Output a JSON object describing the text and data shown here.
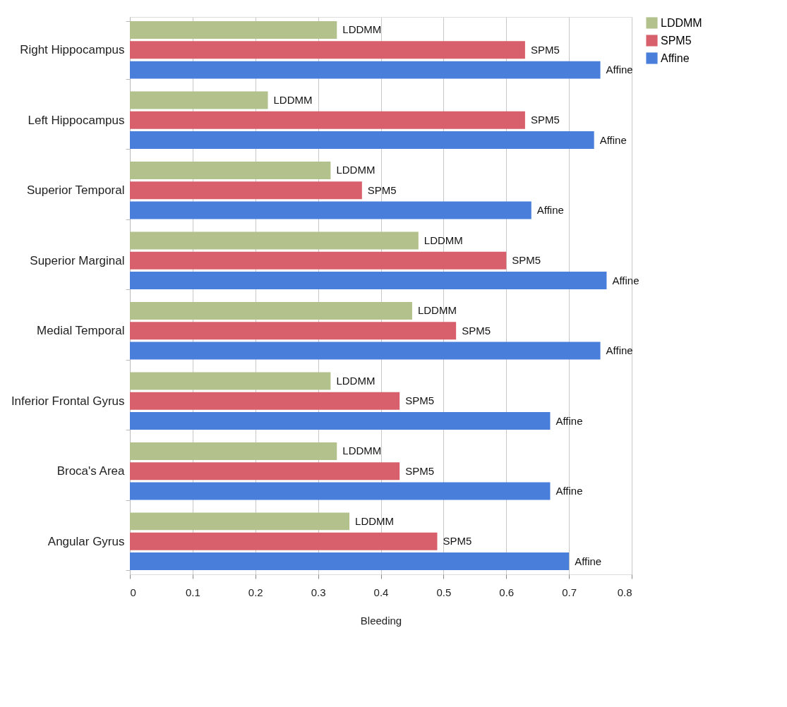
{
  "chart_data": {
    "type": "bar",
    "orientation": "horizontal",
    "xlabel": "Bleeding",
    "categories": [
      "Right Hippocampus",
      "Left Hippocampus",
      "Superior Temporal",
      "Superior Marginal",
      "Medial Temporal",
      "Inferior Frontal Gyrus",
      "Broca's Area",
      "Angular Gyrus"
    ],
    "series": [
      {
        "name": "LDDMM",
        "color": "#b3c28c",
        "values": [
          0.33,
          0.22,
          0.32,
          0.46,
          0.45,
          0.32,
          0.33,
          0.35
        ]
      },
      {
        "name": "SPM5",
        "color": "#d8606c",
        "values": [
          0.63,
          0.63,
          0.37,
          0.6,
          0.52,
          0.43,
          0.43,
          0.49
        ]
      },
      {
        "name": "Affine",
        "color": "#4a7edb",
        "values": [
          0.75,
          0.74,
          0.64,
          0.76,
          0.75,
          0.67,
          0.67,
          0.7
        ]
      }
    ],
    "xlim": [
      0,
      0.8
    ],
    "xticks": [
      0,
      0.1,
      0.2,
      0.3,
      0.4,
      0.5,
      0.6,
      0.7,
      0.8
    ],
    "grid": "x",
    "legend": "right"
  }
}
